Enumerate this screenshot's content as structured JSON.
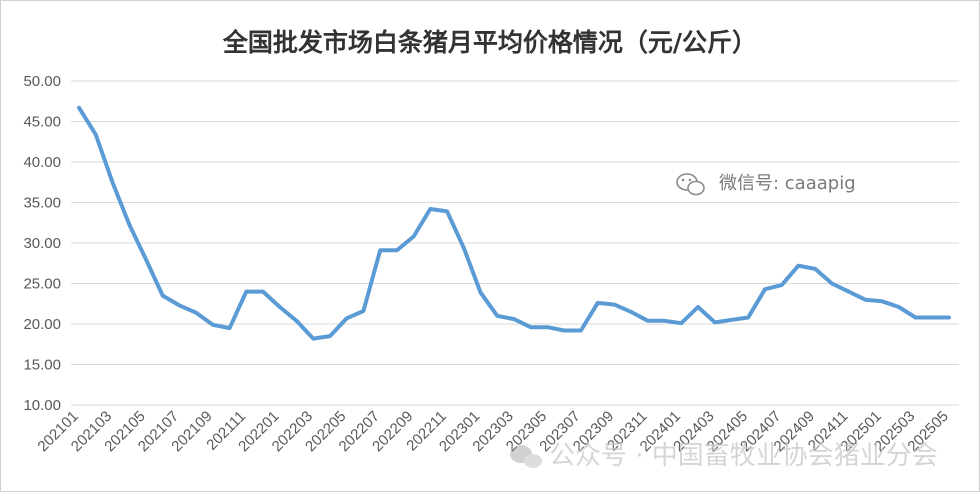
{
  "chart_data": {
    "type": "line",
    "title": "全国批发市场白条猪月平均价格情况（元/公斤）",
    "xlabel": "",
    "ylabel": "",
    "ylim": [
      10,
      50
    ],
    "yticks": [
      "10.00",
      "15.00",
      "20.00",
      "25.00",
      "30.00",
      "35.00",
      "40.00",
      "45.00",
      "50.00"
    ],
    "grid": "horizontal",
    "legend": "none",
    "line_color": "#5b9bd5",
    "categories": [
      "202101",
      "202102",
      "202103",
      "202104",
      "202105",
      "202106",
      "202107",
      "202108",
      "202109",
      "202110",
      "202111",
      "202112",
      "202201",
      "202202",
      "202203",
      "202204",
      "202205",
      "202206",
      "202207",
      "202208",
      "202209",
      "202210",
      "202211",
      "202212",
      "202301",
      "202302",
      "202303",
      "202304",
      "202305",
      "202306",
      "202307",
      "202308",
      "202309",
      "202310",
      "202311",
      "202312",
      "202401",
      "202402",
      "202403",
      "202404",
      "202405",
      "202406",
      "202407",
      "202408",
      "202409",
      "202410",
      "202411",
      "202412",
      "202501",
      "202502",
      "202503",
      "202504",
      "202505"
    ],
    "tick_labels": [
      "202101",
      "202103",
      "202105",
      "202107",
      "202109",
      "202111",
      "202201",
      "202203",
      "202205",
      "202207",
      "202209",
      "202211",
      "202301",
      "202303",
      "202305",
      "202307",
      "202309",
      "202311",
      "202401",
      "202403",
      "202405",
      "202407",
      "202409",
      "202411",
      "202501",
      "202503",
      "202505"
    ],
    "series": [
      {
        "values": [
          46.7,
          43.4,
          37.5,
          32.3,
          28.0,
          23.5,
          22.3,
          21.4,
          19.9,
          19.5,
          24.0,
          24.0,
          22.1,
          20.4,
          18.2,
          18.5,
          20.7,
          21.6,
          29.1,
          29.1,
          30.8,
          34.2,
          33.9,
          29.4,
          23.9,
          21.0,
          20.6,
          19.6,
          19.6,
          19.2,
          19.2,
          22.6,
          22.4,
          21.5,
          20.4,
          20.4,
          20.1,
          22.1,
          20.2,
          20.5,
          20.8,
          24.3,
          24.8,
          27.2,
          26.8,
          25.0,
          24.0,
          23.0,
          22.8,
          22.1,
          20.8,
          20.8,
          20.8
        ]
      }
    ]
  },
  "watermarks": {
    "top": "微信号: caaapig",
    "bottom": "公众号 · 中国畜牧业协会猪业分会"
  }
}
